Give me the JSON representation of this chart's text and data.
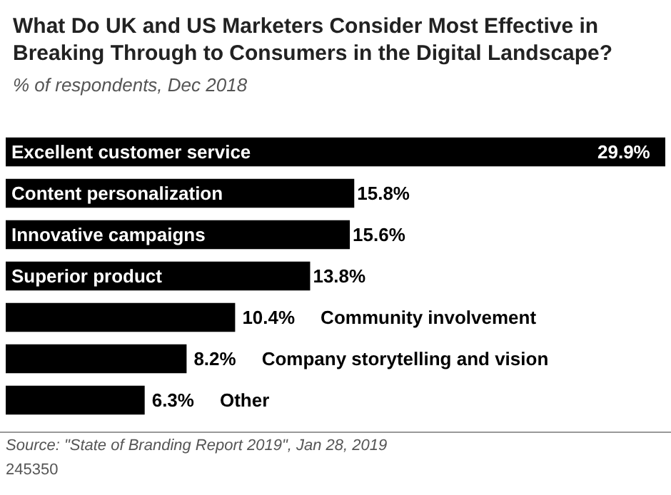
{
  "chart_data": {
    "type": "bar",
    "orientation": "horizontal",
    "title": "What Do UK and US Marketers Consider Most Effective in Breaking Through to Consumers in the Digital Landscape?",
    "subtitle": "% of respondents, Dec 2018",
    "categories": [
      "Excellent customer service",
      "Content personalization",
      "Innovative campaigns",
      "Superior product",
      "Community involvement",
      "Company storytelling and vision",
      "Other"
    ],
    "values": [
      29.9,
      15.8,
      15.6,
      13.8,
      10.4,
      8.2,
      6.3
    ],
    "value_labels": [
      "29.9%",
      "15.8%",
      "15.6%",
      "13.8%",
      "10.4%",
      "8.2%",
      "6.3%"
    ],
    "color": "#000000",
    "annotations": [
      "Source: \"State of Branding Report 2019\", Jan 28, 2019",
      "245350"
    ]
  }
}
